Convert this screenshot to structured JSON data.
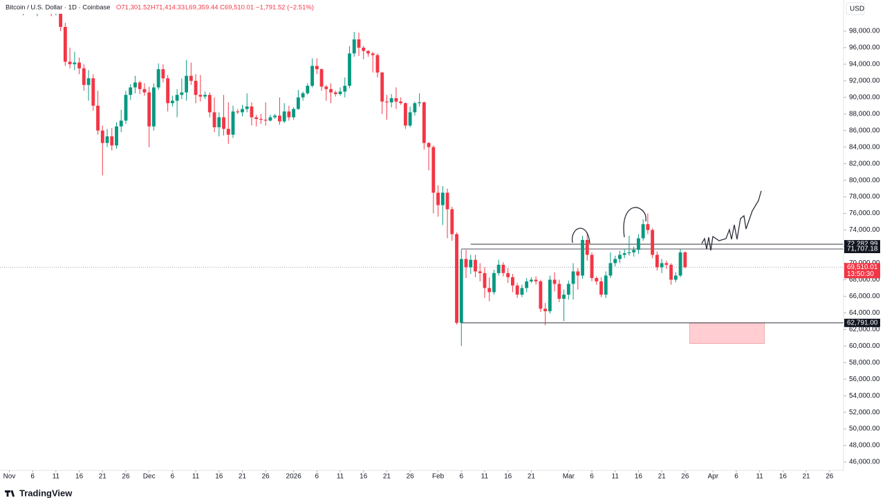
{
  "header": {
    "symbol": "Bitcoin / U.S. Dollar · 1D · Coinbase",
    "ohlc": [
      "O71,301.52",
      "H71,414.33",
      "L69,359.44",
      "C69,510.01"
    ],
    "change": "−1,791.52 (−2.51%)",
    "currency": "USD",
    "brand": "TradingView"
  },
  "chart_data": {
    "type": "candlestick",
    "colors": {
      "up": "#089981",
      "down": "#f23645"
    },
    "x": [
      "2025-11-04",
      "2025-11-05",
      "2025-11-06",
      "2025-11-07",
      "2025-11-08",
      "2025-11-09",
      "2025-11-10",
      "2025-11-11",
      "2025-11-12",
      "2025-11-13",
      "2025-11-14",
      "2025-11-15",
      "2025-11-16",
      "2025-11-17",
      "2025-11-18",
      "2025-11-19",
      "2025-11-20",
      "2025-11-21",
      "2025-11-22",
      "2025-11-23",
      "2025-11-24",
      "2025-11-25",
      "2025-11-26",
      "2025-11-27",
      "2025-11-28",
      "2025-11-29",
      "2025-11-30",
      "2025-12-01",
      "2025-12-02",
      "2025-12-03",
      "2025-12-04",
      "2025-12-05",
      "2025-12-06",
      "2025-12-07",
      "2025-12-08",
      "2025-12-09",
      "2025-12-10",
      "2025-12-11",
      "2025-12-12",
      "2025-12-13",
      "2025-12-14",
      "2025-12-15",
      "2025-12-16",
      "2025-12-17",
      "2025-12-18",
      "2025-12-19",
      "2025-12-20",
      "2025-12-21",
      "2025-12-22",
      "2025-12-23",
      "2025-12-24",
      "2025-12-25",
      "2025-12-26",
      "2025-12-27",
      "2025-12-28",
      "2025-12-29",
      "2025-12-30",
      "2025-12-31",
      "2026-01-01",
      "2026-01-02",
      "2026-01-03",
      "2026-01-04",
      "2026-01-05",
      "2026-01-06",
      "2026-01-07",
      "2026-01-08",
      "2026-01-09",
      "2026-01-10",
      "2026-01-11",
      "2026-01-12",
      "2026-01-13",
      "2026-01-14",
      "2026-01-15",
      "2026-01-16",
      "2026-01-17",
      "2026-01-18",
      "2026-01-19",
      "2026-01-20",
      "2026-01-21",
      "2026-01-22",
      "2026-01-23",
      "2026-01-24",
      "2026-01-25",
      "2026-01-26",
      "2026-01-27",
      "2026-01-28",
      "2026-01-29",
      "2026-01-30",
      "2026-01-31",
      "2026-02-01",
      "2026-02-02",
      "2026-02-03",
      "2026-02-04",
      "2026-02-05",
      "2026-02-06",
      "2026-02-07",
      "2026-02-08",
      "2026-02-09",
      "2026-02-10",
      "2026-02-11",
      "2026-02-12",
      "2026-02-13",
      "2026-02-14",
      "2026-02-15",
      "2026-02-16",
      "2026-02-17",
      "2026-02-18",
      "2026-02-19",
      "2026-02-20",
      "2026-02-21",
      "2026-02-22",
      "2026-02-23",
      "2026-02-24",
      "2026-02-25",
      "2026-02-26",
      "2026-02-27",
      "2026-02-28",
      "2026-03-01",
      "2026-03-02",
      "2026-03-03",
      "2026-03-04",
      "2026-03-05",
      "2026-03-06",
      "2026-03-07",
      "2026-03-08",
      "2026-03-09",
      "2026-03-10",
      "2026-03-11",
      "2026-03-12",
      "2026-03-13",
      "2026-03-14",
      "2026-03-15",
      "2026-03-16",
      "2026-03-17",
      "2026-03-18",
      "2026-03-19",
      "2026-03-20",
      "2026-03-21",
      "2026-03-22",
      "2026-03-23",
      "2026-03-24",
      "2026-03-25",
      "2026-03-26"
    ],
    "open": [
      100500,
      101000,
      101500,
      100800,
      101200,
      101400,
      101200,
      100500,
      101000,
      98500,
      94300,
      94000,
      94200,
      93500,
      91500,
      92300,
      89000,
      86000,
      84500,
      85300,
      84200,
      86500,
      87200,
      90300,
      91200,
      91800,
      91000,
      90600,
      86500,
      91200,
      93400,
      92300,
      89300,
      89600,
      90300,
      90600,
      92600,
      92000,
      90300,
      90100,
      90300,
      88200,
      86400,
      87600,
      86200,
      85500,
      88300,
      88200,
      88600,
      88900,
      87600,
      87400,
      87300,
      87200,
      87600,
      87800,
      87100,
      88300,
      87600,
      88600,
      90000,
      90500,
      91400,
      93800,
      93400,
      91300,
      91000,
      90600,
      90400,
      90700,
      91400,
      95300,
      97000,
      96000,
      95600,
      95300,
      95100,
      93000,
      89500,
      89400,
      89900,
      89500,
      89300,
      86600,
      88200,
      89300,
      89400,
      84500,
      84000,
      78500,
      77000,
      78500,
      76500,
      73500,
      62800,
      70500,
      69500,
      70400,
      69000,
      68800,
      67000,
      66500,
      68800,
      69800,
      68800,
      68300,
      67300,
      66200,
      67000,
      67800,
      68000,
      67800,
      64500,
      64200,
      68000,
      67500,
      65700,
      66200,
      67500,
      69000,
      68500,
      72800,
      71000,
      68200,
      67800,
      66200,
      68500,
      70000,
      70500,
      71000,
      71200,
      71300,
      71600,
      73000,
      74700,
      74000,
      71000,
      69500,
      70000,
      69800,
      68000,
      68500,
      71301.52
    ],
    "high": [
      101600,
      101700,
      101700,
      101700,
      101700,
      101700,
      101700,
      101600,
      101700,
      99000,
      96000,
      95500,
      94800,
      94000,
      93300,
      92800,
      90800,
      86600,
      86200,
      86300,
      87000,
      88500,
      90800,
      91600,
      92600,
      92000,
      91700,
      91300,
      91700,
      94100,
      94000,
      92700,
      90200,
      91000,
      92300,
      94500,
      94200,
      92800,
      92700,
      90700,
      90600,
      90000,
      88200,
      90300,
      89400,
      89000,
      88600,
      89100,
      90500,
      89400,
      87900,
      88000,
      89400,
      87900,
      88000,
      90000,
      89300,
      89000,
      88800,
      90900,
      90700,
      91700,
      94700,
      94700,
      93500,
      91500,
      91700,
      90800,
      91200,
      92400,
      96200,
      97900,
      97800,
      96200,
      95700,
      95500,
      95300,
      93100,
      90300,
      90400,
      91200,
      90000,
      89400,
      88900,
      89500,
      90500,
      89500,
      84600,
      84200,
      79400,
      79300,
      79000,
      76800,
      73700,
      71700,
      71600,
      71000,
      71000,
      70000,
      69500,
      68300,
      69200,
      70400,
      70100,
      69400,
      68700,
      67600,
      67400,
      68200,
      68300,
      68400,
      68000,
      65200,
      68500,
      68900,
      68000,
      66800,
      67900,
      70000,
      69400,
      73300,
      73700,
      71300,
      68400,
      68300,
      69000,
      71300,
      70900,
      71500,
      71700,
      73300,
      72000,
      73500,
      75300,
      76000,
      74200,
      71400,
      70500,
      70300,
      70000,
      68900,
      71700,
      71414.33
    ],
    "low": [
      99900,
      100400,
      100200,
      99800,
      100600,
      100500,
      99800,
      99900,
      98000,
      93800,
      93500,
      93300,
      92800,
      90800,
      89600,
      88400,
      85500,
      80600,
      84000,
      83600,
      83800,
      85800,
      86800,
      89700,
      90500,
      90400,
      90200,
      84000,
      86000,
      90900,
      91800,
      88300,
      88900,
      87600,
      89800,
      89600,
      91500,
      89300,
      89500,
      89800,
      87600,
      85800,
      85300,
      85400,
      84400,
      85100,
      88000,
      87700,
      88200,
      86600,
      86500,
      86800,
      86600,
      87100,
      87400,
      86700,
      86900,
      87200,
      87300,
      88500,
      89600,
      90300,
      91200,
      92800,
      90800,
      89600,
      89300,
      90100,
      90200,
      90000,
      91100,
      94900,
      95000,
      94600,
      94900,
      93000,
      92400,
      88000,
      87300,
      88800,
      88600,
      89100,
      86200,
      86400,
      87800,
      88900,
      83700,
      81200,
      76000,
      75600,
      74600,
      73000,
      72700,
      62600,
      60000,
      68200,
      68700,
      68300,
      67800,
      65800,
      65400,
      66200,
      68500,
      68400,
      67600,
      66500,
      65800,
      65900,
      66500,
      67600,
      67400,
      64100,
      62500,
      63900,
      66600,
      65300,
      63000,
      65600,
      65600,
      66800,
      68100,
      70300,
      67800,
      67400,
      65900,
      65800,
      68200,
      69600,
      70000,
      70600,
      70900,
      70800,
      71100,
      72700,
      73500,
      70600,
      69100,
      68800,
      69300,
      67400,
      67700,
      68300,
      69359.44
    ],
    "close": [
      101000,
      101500,
      100800,
      101200,
      101400,
      101200,
      100500,
      101000,
      98500,
      94300,
      94000,
      94200,
      93500,
      91500,
      92300,
      89000,
      86000,
      84500,
      85300,
      84200,
      86500,
      87200,
      90300,
      91200,
      91800,
      91000,
      90600,
      86500,
      91200,
      93400,
      92300,
      89300,
      89600,
      90300,
      90600,
      92600,
      92000,
      90300,
      90100,
      90300,
      88200,
      86400,
      87600,
      86200,
      85500,
      88300,
      88200,
      88600,
      88900,
      87600,
      87400,
      87300,
      87200,
      87600,
      87800,
      87100,
      88300,
      87600,
      88600,
      90000,
      90500,
      91400,
      93800,
      93400,
      91300,
      91000,
      90600,
      90400,
      90700,
      91400,
      95300,
      97000,
      96000,
      95600,
      95300,
      95100,
      93000,
      89500,
      89400,
      89900,
      89500,
      89300,
      86600,
      88200,
      89300,
      89400,
      84500,
      84000,
      78500,
      77000,
      78500,
      76500,
      73500,
      62800,
      70500,
      69500,
      70400,
      69000,
      68800,
      67000,
      66500,
      68800,
      69800,
      68800,
      68300,
      67300,
      66200,
      67000,
      67800,
      68000,
      67800,
      64500,
      64200,
      68000,
      67500,
      65700,
      66200,
      67500,
      69000,
      68500,
      72800,
      71000,
      68200,
      67800,
      66200,
      68500,
      70000,
      70500,
      71000,
      71200,
      71300,
      71600,
      73000,
      74700,
      74000,
      71000,
      69500,
      70000,
      69800,
      68000,
      68500,
      71300,
      69510.01
    ],
    "xlim": [
      "2025-10-30",
      "2026-04-29"
    ],
    "xticks": [
      {
        "value": "2025-11-01",
        "label": "Nov"
      },
      {
        "value": "2025-11-06",
        "label": "6"
      },
      {
        "value": "2025-11-11",
        "label": "11"
      },
      {
        "value": "2025-11-16",
        "label": "16"
      },
      {
        "value": "2025-11-21",
        "label": "21"
      },
      {
        "value": "2025-11-26",
        "label": "26"
      },
      {
        "value": "2025-12-01",
        "label": "Dec"
      },
      {
        "value": "2025-12-06",
        "label": "6"
      },
      {
        "value": "2025-12-11",
        "label": "11"
      },
      {
        "value": "2025-12-16",
        "label": "16"
      },
      {
        "value": "2025-12-21",
        "label": "21"
      },
      {
        "value": "2025-12-26",
        "label": "26"
      },
      {
        "value": "2026-01-01",
        "label": "2026"
      },
      {
        "value": "2026-01-06",
        "label": "6"
      },
      {
        "value": "2026-01-11",
        "label": "11"
      },
      {
        "value": "2026-01-16",
        "label": "16"
      },
      {
        "value": "2026-01-21",
        "label": "21"
      },
      {
        "value": "2026-01-26",
        "label": "26"
      },
      {
        "value": "2026-02-01",
        "label": "Feb"
      },
      {
        "value": "2026-02-06",
        "label": "6"
      },
      {
        "value": "2026-02-11",
        "label": "11"
      },
      {
        "value": "2026-02-16",
        "label": "16"
      },
      {
        "value": "2026-02-21",
        "label": "21"
      },
      {
        "value": "2026-03-01",
        "label": "Mar"
      },
      {
        "value": "2026-03-06",
        "label": "6"
      },
      {
        "value": "2026-03-11",
        "label": "11"
      },
      {
        "value": "2026-03-16",
        "label": "16"
      },
      {
        "value": "2026-03-21",
        "label": "21"
      },
      {
        "value": "2026-03-26",
        "label": "26"
      },
      {
        "value": "2026-04-01",
        "label": "Apr"
      },
      {
        "value": "2026-04-06",
        "label": "6"
      },
      {
        "value": "2026-04-11",
        "label": "11"
      },
      {
        "value": "2026-04-16",
        "label": "16"
      },
      {
        "value": "2026-04-21",
        "label": "21"
      },
      {
        "value": "2026-04-26",
        "label": "26"
      }
    ],
    "ylim": [
      45000,
      101750
    ],
    "yticks": [
      {
        "value": 46000,
        "label": "46,000.00"
      },
      {
        "value": 48000,
        "label": "48,000.00"
      },
      {
        "value": 50000,
        "label": "50,000.00"
      },
      {
        "value": 52000,
        "label": "52,000.00"
      },
      {
        "value": 54000,
        "label": "54,000.00"
      },
      {
        "value": 56000,
        "label": "56,000.00"
      },
      {
        "value": 58000,
        "label": "58,000.00"
      },
      {
        "value": 60000,
        "label": "60,000.00"
      },
      {
        "value": 62000,
        "label": "62,000.00"
      },
      {
        "value": 64000,
        "label": "64,000.00"
      },
      {
        "value": 66000,
        "label": "66,000.00"
      },
      {
        "value": 68000,
        "label": "68,000.00"
      },
      {
        "value": 70000,
        "label": "70,000.00"
      },
      {
        "value": 72000,
        "label": "72,000.00"
      },
      {
        "value": 74000,
        "label": "74,000.00"
      },
      {
        "value": 76000,
        "label": "76,000.00"
      },
      {
        "value": 78000,
        "label": "78,000.00"
      },
      {
        "value": 80000,
        "label": "80,000.00"
      },
      {
        "value": 82000,
        "label": "82,000.00"
      },
      {
        "value": 84000,
        "label": "84,000.00"
      },
      {
        "value": 86000,
        "label": "86,000.00"
      },
      {
        "value": 88000,
        "label": "88,000.00"
      },
      {
        "value": 90000,
        "label": "90,000.00"
      },
      {
        "value": 92000,
        "label": "92,000.00"
      },
      {
        "value": 94000,
        "label": "94,000.00"
      },
      {
        "value": 96000,
        "label": "96,000.00"
      },
      {
        "value": 98000,
        "label": "98,000.00"
      }
    ],
    "hlines": [
      {
        "value": 72282.99,
        "label": "72,282.99",
        "from": "2026-02-08"
      },
      {
        "value": 71707.18,
        "label": "71,707.18",
        "from": "2026-02-06"
      },
      {
        "value": 62791,
        "label": "62,791.00",
        "from": "2026-02-06"
      }
    ],
    "last": {
      "value": 69510.01,
      "label": "69,510.01",
      "countdown": "13:50:30"
    },
    "zone": {
      "from": "2026-03-27",
      "to": "2026-04-12",
      "top": 62791,
      "bottom": 60300,
      "color": "#ffcdd2"
    }
  }
}
